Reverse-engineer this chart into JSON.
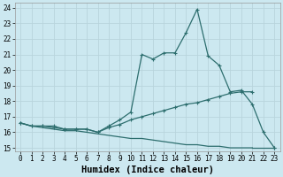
{
  "xlabel": "Humidex (Indice chaleur)",
  "x": [
    0,
    1,
    2,
    3,
    4,
    5,
    6,
    7,
    8,
    9,
    10,
    11,
    12,
    13,
    14,
    15,
    16,
    17,
    18,
    19,
    20,
    21,
    22,
    23
  ],
  "line1_y": [
    16.6,
    16.4,
    16.4,
    16.4,
    16.2,
    16.2,
    16.2,
    16.0,
    16.4,
    16.8,
    17.3,
    21.0,
    20.7,
    21.1,
    21.1,
    22.4,
    23.9,
    20.9,
    20.3,
    18.6,
    18.7,
    17.8,
    16.0,
    15.0
  ],
  "line2_y": [
    16.6,
    16.4,
    16.4,
    16.3,
    16.2,
    16.2,
    16.2,
    16.0,
    16.3,
    16.5,
    16.8,
    17.0,
    17.2,
    17.4,
    17.6,
    17.8,
    17.9,
    18.1,
    18.3,
    18.5,
    18.6,
    18.6,
    null,
    null
  ],
  "line3_y": [
    16.6,
    16.4,
    16.3,
    16.2,
    16.1,
    16.1,
    16.0,
    15.9,
    15.8,
    15.7,
    15.6,
    15.6,
    15.5,
    15.4,
    15.3,
    15.2,
    15.2,
    15.1,
    15.1,
    15.0,
    15.0,
    15.0,
    null,
    15.0
  ],
  "bg_color": "#cce8f0",
  "grid_color": "#b8d4dc",
  "line_color": "#2d6e6e",
  "xlim": [
    -0.5,
    23.5
  ],
  "ylim": [
    14.8,
    24.3
  ],
  "yticks": [
    15,
    16,
    17,
    18,
    19,
    20,
    21,
    22,
    23,
    24
  ],
  "xticks": [
    0,
    1,
    2,
    3,
    4,
    5,
    6,
    7,
    8,
    9,
    10,
    11,
    12,
    13,
    14,
    15,
    16,
    17,
    18,
    19,
    20,
    21,
    22,
    23
  ],
  "tick_fontsize": 5.5,
  "xlabel_fontsize": 7.5
}
